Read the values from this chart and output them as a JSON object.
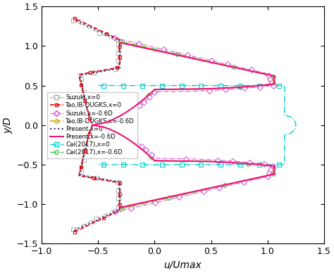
{
  "xlim": [
    -1.0,
    1.5
  ],
  "ylim": [
    -1.5,
    1.5
  ],
  "xlabel": "u/Umax",
  "ylabel": "y/D",
  "xticks": [
    -1.0,
    -0.5,
    0.0,
    0.5,
    1.0,
    1.5
  ],
  "yticks": [
    -1.5,
    -1.0,
    -0.5,
    0.0,
    0.5,
    1.0,
    1.5
  ],
  "colors": {
    "suzuki_x0": "#aaaaaa",
    "tao_x0": "#ee0000",
    "suzuki_x06": "#cc44cc",
    "tao_x06": "#ccaa00",
    "present_x0": "#333377",
    "present_x06": "#ee1177",
    "cai_x0": "#00cccc",
    "cai_x06": "#44cc44"
  }
}
